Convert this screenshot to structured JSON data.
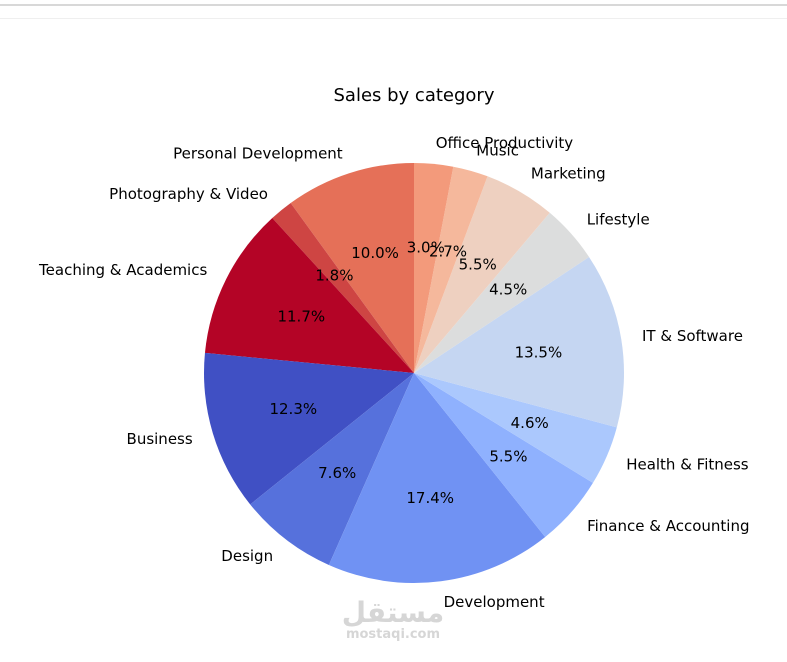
{
  "chart_data": {
    "type": "pie",
    "title": "Sales by category",
    "start_angle_deg": 90,
    "direction": "counterclockwise",
    "slices": [
      {
        "label": "Personal Development",
        "value": 10.0,
        "pct_label": "10.0%",
        "color": "#e57058"
      },
      {
        "label": "Photography & Video",
        "value": 1.8,
        "pct_label": "1.8%",
        "color": "#ce4543"
      },
      {
        "label": "Teaching & Academics",
        "value": 11.7,
        "pct_label": "11.7%",
        "color": "#b40426"
      },
      {
        "label": "Business",
        "value": 12.3,
        "pct_label": "12.3%",
        "color": "#4050c4"
      },
      {
        "label": "Design",
        "value": 7.6,
        "pct_label": "7.6%",
        "color": "#5671dc"
      },
      {
        "label": "Development",
        "value": 17.4,
        "pct_label": "17.4%",
        "color": "#7092f3"
      },
      {
        "label": "Finance & Accounting",
        "value": 5.5,
        "pct_label": "5.5%",
        "color": "#8fb1fe"
      },
      {
        "label": "Health & Fitness",
        "value": 4.6,
        "pct_label": "4.6%",
        "color": "#abc8fd"
      },
      {
        "label": "IT & Software",
        "value": 13.5,
        "pct_label": "13.5%",
        "color": "#c5d6f2"
      },
      {
        "label": "Lifestyle",
        "value": 4.5,
        "pct_label": "4.5%",
        "color": "#dcdddd"
      },
      {
        "label": "Marketing",
        "value": 5.5,
        "pct_label": "5.5%",
        "color": "#eed0c0"
      },
      {
        "label": "Music",
        "value": 2.7,
        "pct_label": "2.7%",
        "color": "#f5b89c"
      },
      {
        "label": "Office Productivity",
        "value": 3.0,
        "pct_label": "3.0%",
        "color": "#f39a7b"
      }
    ]
  },
  "watermark": {
    "arabic": "مستقل",
    "latin": "mostaqi.com"
  }
}
